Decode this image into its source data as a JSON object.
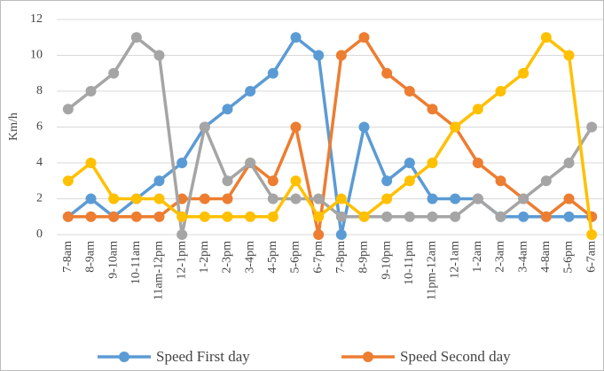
{
  "chart_data": {
    "type": "line",
    "ylabel": "Km/h",
    "categories": [
      "7-8am",
      "8-9am",
      "9-10am",
      "10-11am",
      "11am-12pm",
      "12-1pm",
      "1-2pm",
      "2-3pm",
      "3-4pm",
      "4-5pm",
      "5-6pm",
      "6-7pm",
      "7-8pm",
      "8-9pm",
      "9-10pm",
      "10-11pm",
      "11pm-12am",
      "12-1am",
      "1-2am",
      "2-3am",
      "3-4am",
      "4-8am",
      "5-6pm",
      "6-7am"
    ],
    "series": [
      {
        "name": "Speed First day",
        "color": "#5b9bd5",
        "values": [
          1,
          2,
          1,
          2,
          3,
          4,
          6,
          7,
          8,
          9,
          11,
          10,
          0,
          6,
          3,
          4,
          2,
          2,
          2,
          1,
          1,
          1,
          1,
          1
        ]
      },
      {
        "name": "Speed Second day",
        "color": "#ed7d31",
        "values": [
          1,
          1,
          1,
          1,
          1,
          2,
          2,
          2,
          4,
          3,
          6,
          0,
          10,
          11,
          9,
          8,
          7,
          6,
          4,
          3,
          2,
          1,
          2,
          1
        ]
      },
      {
        "color": "#a5a5a5",
        "values": [
          7,
          8,
          9,
          11,
          10,
          0,
          6,
          3,
          4,
          2,
          2,
          2,
          1,
          1,
          1,
          1,
          1,
          1,
          2,
          1,
          2,
          3,
          4,
          6
        ]
      },
      {
        "color": "#ffc000",
        "values": [
          3,
          4,
          2,
          2,
          2,
          1,
          1,
          1,
          1,
          1,
          3,
          1,
          2,
          1,
          2,
          3,
          4,
          6,
          7,
          8,
          9,
          11,
          10,
          0
        ]
      }
    ],
    "ylim": [
      0,
      12
    ],
    "yticks": [
      0,
      2,
      4,
      6,
      8,
      10,
      12
    ],
    "grid": true
  }
}
